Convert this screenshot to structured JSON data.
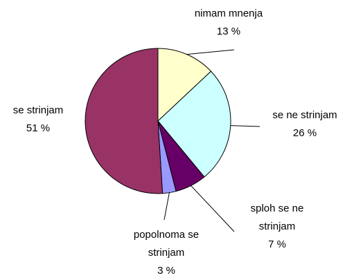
{
  "chart_data": {
    "type": "pie",
    "series": [
      {
        "name": "nimam mnenja",
        "color": "#ffffcc",
        "value": 13,
        "value_label": "13 %"
      },
      {
        "name": "se ne strinjam",
        "color": "#ccffff",
        "value": 26,
        "value_label": "26 %"
      },
      {
        "name": "sploh se ne strinjam",
        "color": "#660066",
        "value": 7,
        "value_label": "7 %"
      },
      {
        "name": "popolnoma se strinjam",
        "color": "#9999ff",
        "value": 3,
        "value_label": "3 %"
      },
      {
        "name": "se strinjam",
        "color": "#993366",
        "value": 51,
        "value_label": "51 %"
      }
    ]
  }
}
